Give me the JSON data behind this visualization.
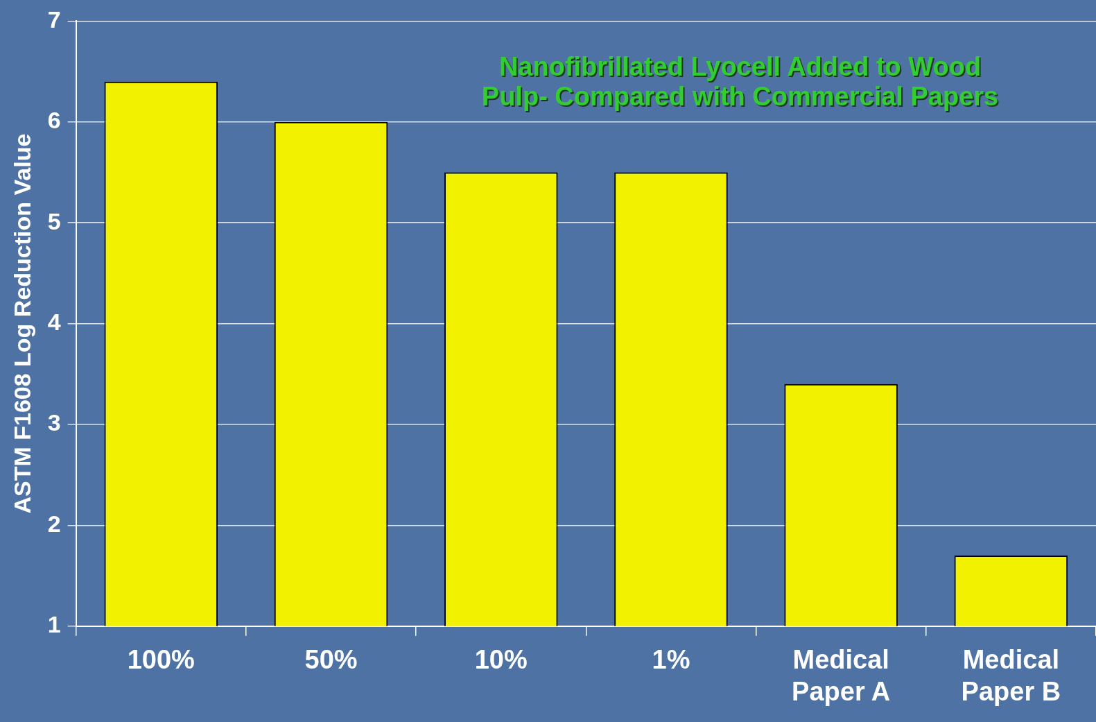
{
  "chart_data": {
    "type": "bar",
    "title": "Nanofibrillated Lyocell Added to Wood Pulp- Compared with Commercial Papers",
    "ylabel": "ASTM F1608 Log Reduction Value",
    "categories": [
      "100%",
      "50%",
      "10%",
      "1%",
      "Medical Paper A",
      "Medical Paper B"
    ],
    "values": [
      6.4,
      6.0,
      5.5,
      5.5,
      3.4,
      1.7
    ],
    "color": "#f2f200",
    "ylim": [
      1,
      7
    ],
    "yticks": [
      1,
      2,
      3,
      4,
      5,
      6,
      7
    ],
    "grid": "y",
    "legend": false
  }
}
